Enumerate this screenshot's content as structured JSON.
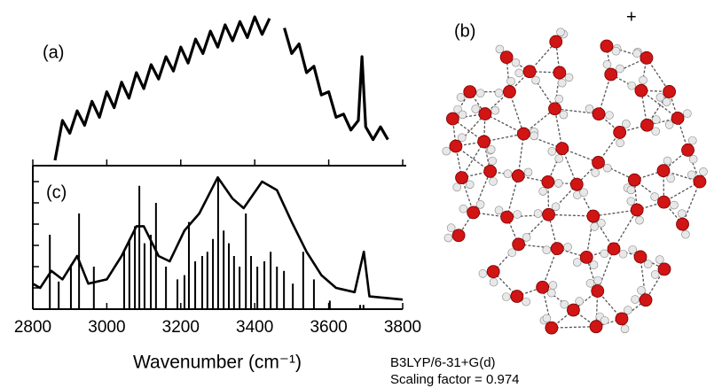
{
  "chart_data": [
    {
      "type": "line",
      "label": "(a)",
      "color": "#000000",
      "xlim": [
        2800,
        3800
      ],
      "ylim": [
        0,
        1
      ],
      "x": [
        2860,
        2880,
        2900,
        2920,
        2940,
        2960,
        2980,
        3000,
        3020,
        3040,
        3060,
        3080,
        3100,
        3120,
        3140,
        3160,
        3180,
        3200,
        3220,
        3240,
        3260,
        3280,
        3300,
        3320,
        3340,
        3360,
        3380,
        3400,
        3420,
        3440,
        3460,
        3480,
        3500,
        3520,
        3540,
        3560,
        3580,
        3600,
        3620,
        3640,
        3660,
        3680,
        3690,
        3700,
        3720,
        3740,
        3760
      ],
      "values": [
        0.05,
        0.3,
        0.22,
        0.36,
        0.27,
        0.42,
        0.32,
        0.48,
        0.38,
        0.54,
        0.44,
        0.6,
        0.5,
        0.65,
        0.56,
        0.7,
        0.61,
        0.76,
        0.66,
        0.81,
        0.72,
        0.86,
        0.76,
        0.9,
        0.8,
        0.92,
        0.82,
        0.95,
        0.84,
        0.94,
        null,
        0.88,
        0.72,
        0.78,
        0.6,
        0.64,
        0.46,
        0.48,
        0.32,
        0.34,
        0.24,
        0.3,
        0.7,
        0.26,
        0.18,
        0.26,
        0.18
      ]
    },
    {
      "type": "line",
      "label": "(c)",
      "color": "#000000",
      "xlim": [
        2800,
        3800
      ],
      "xticks": [
        2800,
        3000,
        3200,
        3400,
        3600,
        3800
      ],
      "ylim": [
        0,
        6.75
      ],
      "yticks": [
        1,
        2,
        3,
        4,
        5,
        6
      ],
      "xlabel": "Wavenumber (cm⁻¹)",
      "x": [
        2800,
        2820,
        2850,
        2880,
        2920,
        2950,
        3000,
        3040,
        3080,
        3100,
        3140,
        3170,
        3210,
        3250,
        3300,
        3340,
        3370,
        3420,
        3460,
        3500,
        3540,
        3580,
        3620,
        3670,
        3695,
        3710,
        3800
      ],
      "values": [
        1.2,
        1.0,
        1.8,
        1.4,
        2.5,
        1.2,
        1.4,
        2.5,
        3.9,
        3.9,
        2.5,
        2.25,
        3.7,
        4.5,
        6.2,
        5.2,
        4.75,
        6.0,
        5.6,
        4.1,
        2.7,
        1.6,
        1.0,
        0.8,
        2.7,
        0.6,
        0.45
      ],
      "stick_x": [
        2846,
        2870,
        2903,
        2925,
        2965,
        3047,
        3061,
        3076,
        3088,
        3102,
        3119,
        3133,
        3160,
        3191,
        3210,
        3222,
        3239,
        3258,
        3272,
        3287,
        3301,
        3316,
        3330,
        3344,
        3359,
        3376,
        3390,
        3407,
        3426,
        3443,
        3460,
        3479,
        3503,
        3531,
        3560,
        3603,
        3685,
        3694
      ],
      "stick_values": [
        3.5,
        1.3,
        2.1,
        4.5,
        2.0,
        2.8,
        3.3,
        3.9,
        5.8,
        3.1,
        3.5,
        5.0,
        2.0,
        1.4,
        1.6,
        4.1,
        2.25,
        2.5,
        2.7,
        3.3,
        6.2,
        3.7,
        3.1,
        2.5,
        2.0,
        4.5,
        2.5,
        2.0,
        2.25,
        2.7,
        2.0,
        1.8,
        1.2,
        2.7,
        1.4,
        0.4,
        0.2,
        0.2
      ]
    }
  ],
  "figure": {
    "label_b": "(b)",
    "charge": "+",
    "method": "B3LYP/6-31+G(d)",
    "scaling": "Scaling factor = 0.974"
  }
}
